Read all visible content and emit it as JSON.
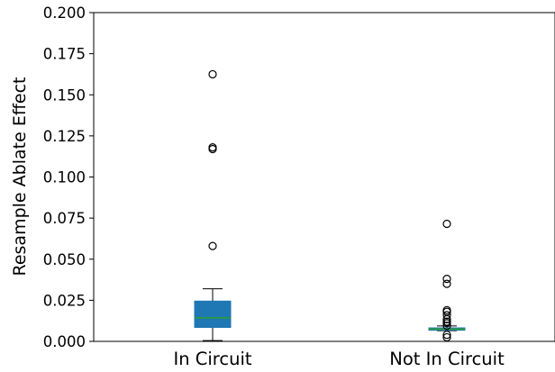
{
  "chart_data": {
    "type": "box",
    "ylabel": "Resample Ablate Effect",
    "xlabel": "",
    "ylim": [
      0.0,
      0.2
    ],
    "yticks": [
      "0.000",
      "0.025",
      "0.050",
      "0.075",
      "0.100",
      "0.125",
      "0.150",
      "0.175",
      "0.200"
    ],
    "ytick_values": [
      0.0,
      0.025,
      0.05,
      0.075,
      0.1,
      0.125,
      0.15,
      0.175,
      0.2
    ],
    "categories": [
      "In Circuit",
      "Not In Circuit"
    ],
    "grid": false,
    "boxes": [
      {
        "whisker_low": 0.0005,
        "q1": 0.0085,
        "median": 0.0143,
        "q3": 0.0245,
        "whisker_high": 0.032,
        "outliers": [
          0.058,
          0.117,
          0.118,
          0.1625
        ]
      },
      {
        "whisker_low": 0.0065,
        "q1": 0.0068,
        "median": 0.0075,
        "q3": 0.0082,
        "whisker_high": 0.0094,
        "outliers": [
          0.0025,
          0.004,
          0.0095,
          0.011,
          0.012,
          0.0135,
          0.016,
          0.018,
          0.019,
          0.035,
          0.038,
          0.0715
        ]
      }
    ],
    "colors": {
      "box_fill": "#1f77b4",
      "median": "#2ca02c",
      "line": "#000000"
    }
  }
}
